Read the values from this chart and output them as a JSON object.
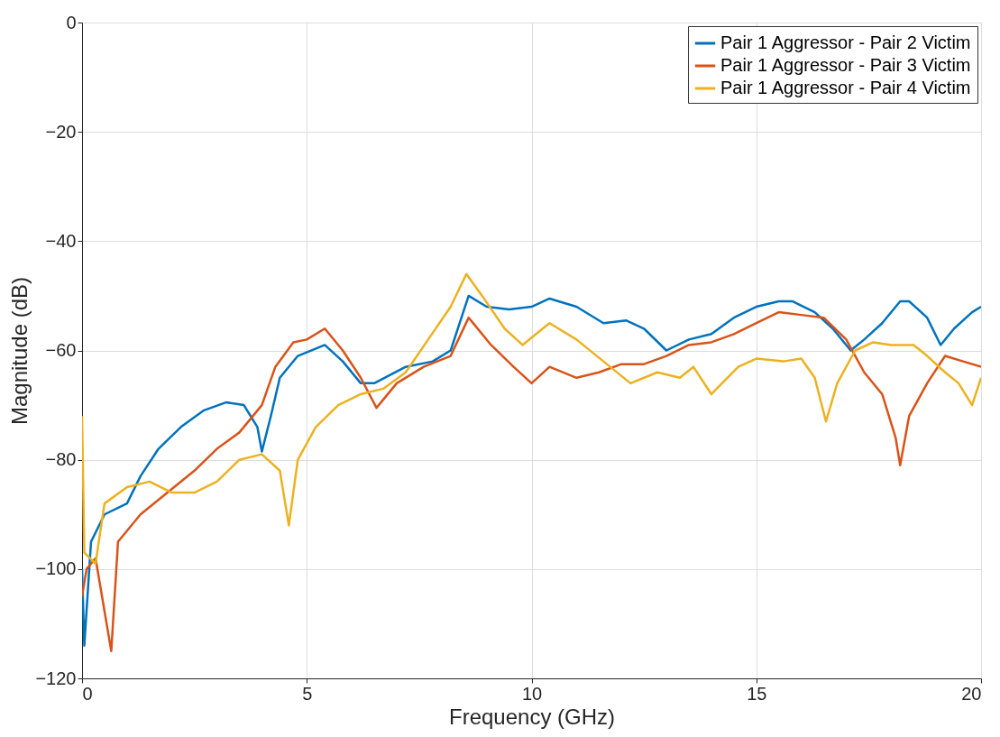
{
  "chart_data": {
    "type": "line",
    "xlabel": "Frequency (GHz)",
    "ylabel": "Magnitude (dB)",
    "xlim": [
      0,
      20
    ],
    "xticks": [
      0,
      5,
      10,
      15,
      20
    ],
    "ylim": [
      -120,
      0
    ],
    "yticks": [
      -120,
      -100,
      -80,
      -60,
      -40,
      -20,
      0
    ],
    "grid": true,
    "legend": "top right",
    "marker": "none",
    "line_style": "solid",
    "series": [
      {
        "name": "Pair 1 Aggressor - Pair 2 Victim",
        "color": "#0072bd",
        "x": [
          0,
          0.05,
          0.2,
          0.5,
          1,
          1.3,
          1.7,
          2.2,
          2.7,
          3.2,
          3.6,
          3.9,
          4.0,
          4.2,
          4.4,
          4.8,
          5.4,
          5.8,
          6.2,
          6.5,
          7.2,
          7.8,
          8.2,
          8.6,
          9.0,
          9.5,
          10.0,
          10.4,
          11,
          11.6,
          12.1,
          12.5,
          13,
          13.5,
          14,
          14.5,
          15,
          15.5,
          15.8,
          16.3,
          16.7,
          17.1,
          17.4,
          17.8,
          18.2,
          18.4,
          18.8,
          19.1,
          19.4,
          19.8,
          20
        ],
        "values": [
          -100,
          -114,
          -95,
          -90,
          -88,
          -83,
          -78,
          -74,
          -71,
          -69.5,
          -70,
          -74,
          -78.5,
          -72,
          -65,
          -61,
          -59,
          -62,
          -66,
          -66,
          -63,
          -62,
          -60,
          -50,
          -52,
          -52.5,
          -52,
          -50.5,
          -52,
          -55,
          -54.5,
          -56,
          -60,
          -58,
          -57,
          -54,
          -52,
          -51,
          -51,
          -53,
          -56,
          -60,
          -58,
          -55,
          -51,
          -51,
          -54,
          -59,
          -56,
          -53,
          -52
        ]
      },
      {
        "name": "Pair 1 Aggressor - Pair 3 Victim",
        "color": "#d95319",
        "x": [
          0,
          0.1,
          0.3,
          0.65,
          0.8,
          1.3,
          1.9,
          2.5,
          3,
          3.5,
          4.0,
          4.3,
          4.7,
          5,
          5.4,
          5.8,
          6.2,
          6.55,
          7,
          7.6,
          8.2,
          8.6,
          9.1,
          9.6,
          10,
          10.4,
          11,
          11.5,
          12,
          12.5,
          13,
          13.5,
          14,
          14.5,
          15,
          15.5,
          16,
          16.5,
          17,
          17.4,
          17.8,
          18.1,
          18.2,
          18.4,
          18.8,
          19.2,
          19.6,
          20
        ],
        "values": [
          -105,
          -100,
          -98,
          -115,
          -95,
          -90,
          -86,
          -82,
          -78,
          -75,
          -70,
          -63,
          -58.5,
          -58,
          -56,
          -60,
          -65,
          -70.5,
          -66,
          -63,
          -61,
          -54,
          -59,
          -63,
          -66,
          -63,
          -65,
          -64,
          -62.5,
          -62.5,
          -61,
          -59,
          -58.5,
          -57,
          -55,
          -53,
          -53.5,
          -54,
          -58,
          -64,
          -68,
          -76,
          -81,
          -72,
          -66,
          -61,
          -62,
          -63
        ]
      },
      {
        "name": "Pair 1 Aggressor - Pair 4 Victim",
        "color": "#edb120",
        "x": [
          0,
          0.05,
          0.3,
          0.5,
          1,
          1.5,
          2,
          2.5,
          3,
          3.5,
          4.0,
          4.4,
          4.6,
          4.8,
          5.2,
          5.7,
          6.2,
          6.7,
          7.2,
          7.7,
          8.2,
          8.55,
          8.9,
          9.4,
          9.8,
          10.1,
          10.4,
          11,
          11.6,
          12.2,
          12.8,
          13.3,
          13.6,
          14,
          14.6,
          15,
          15.6,
          16,
          16.3,
          16.55,
          16.8,
          17.2,
          17.6,
          18,
          18.5,
          18.8,
          19.2,
          19.5,
          19.8,
          20
        ],
        "values": [
          -72,
          -97,
          -99,
          -88,
          -85,
          -84,
          -86,
          -86,
          -84,
          -80,
          -79,
          -82,
          -92,
          -80,
          -74,
          -70,
          -68,
          -67,
          -64,
          -58,
          -52,
          -46,
          -50,
          -56,
          -59,
          -57,
          -55,
          -58,
          -62,
          -66,
          -64,
          -65,
          -63,
          -68,
          -63,
          -61.5,
          -62,
          -61.5,
          -65,
          -73,
          -66,
          -60,
          -58.5,
          -59,
          -59,
          -61,
          -64,
          -66,
          -70,
          -65
        ]
      }
    ]
  }
}
